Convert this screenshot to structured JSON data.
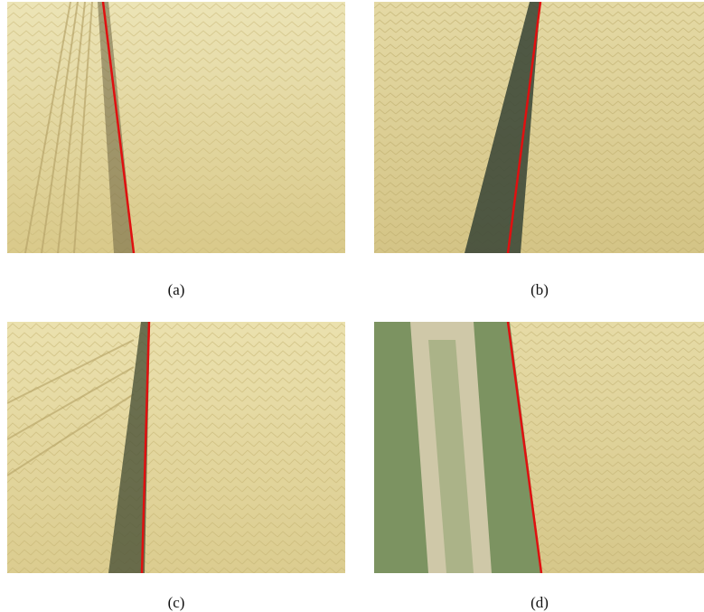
{
  "figure": {
    "panels": [
      {
        "id": "a",
        "caption": "(a)"
      },
      {
        "id": "b",
        "caption": "(b)"
      },
      {
        "id": "c",
        "caption": "(c)"
      },
      {
        "id": "d",
        "caption": "(d)"
      }
    ]
  },
  "colors": {
    "crop_light": "#e7dca2",
    "crop_mid": "#d8c98c",
    "crop_dark": "#b9a766",
    "shadow": "#3f4a3a",
    "grass": "#6d8a55",
    "soil": "#cfc8a8",
    "detected_line": "#e01010"
  }
}
